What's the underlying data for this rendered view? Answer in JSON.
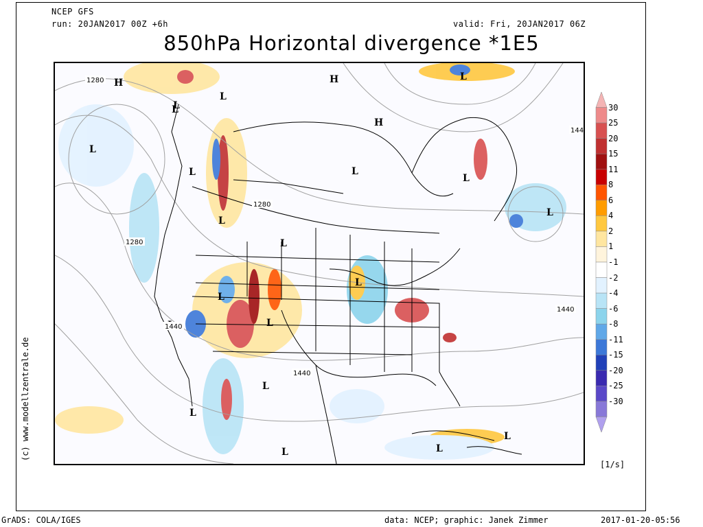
{
  "header": {
    "model": "NCEP GFS",
    "run": "run: 20JAN2017 00Z +6h",
    "valid": "valid: Fri, 20JAN2017 06Z",
    "title": "850hPa Horizontal divergence *1E5"
  },
  "credit_vertical": "(c) www.modellzentrale.de",
  "footer": {
    "left": "GrADS: COLA/IGES",
    "center": "data: NCEP; graphic: Janek Zimmer",
    "right": "2017-01-20-05:56"
  },
  "legend": {
    "unit": "[1/s]",
    "levels": [
      "30",
      "25",
      "20",
      "15",
      "11",
      "8",
      "6",
      "4",
      "2",
      "1",
      "-1",
      "-2",
      "-4",
      "-6",
      "-8",
      "-11",
      "-15",
      "-20",
      "-25",
      "-30"
    ],
    "colors": [
      "#f4b4b4",
      "#ee8a8a",
      "#d85050",
      "#c03030",
      "#a01010",
      "#c80000",
      "#ff5500",
      "#ff9c00",
      "#ffc840",
      "#ffe6a0",
      "#fff4dc",
      "#ffffff",
      "#e2f2ff",
      "#b8e4f6",
      "#8cd4ec",
      "#60a8e8",
      "#3c78d8",
      "#2040b8",
      "#3a2ab0",
      "#5a48c8",
      "#8878d8",
      "#b0a0ee"
    ]
  },
  "map_labels": {
    "pressure_systems": [
      {
        "symbol": "H"
      },
      {
        "symbol": "L"
      },
      {
        "symbol": "L"
      },
      {
        "symbol": "L"
      },
      {
        "symbol": "H"
      },
      {
        "symbol": "H"
      },
      {
        "symbol": "L"
      },
      {
        "symbol": "L"
      },
      {
        "symbol": "L"
      },
      {
        "symbol": "L"
      },
      {
        "symbol": "L"
      },
      {
        "symbol": "L"
      },
      {
        "symbol": "L"
      },
      {
        "symbol": "L"
      },
      {
        "symbol": "L"
      },
      {
        "symbol": "L"
      },
      {
        "symbol": "L"
      },
      {
        "symbol": "L"
      },
      {
        "symbol": "L"
      },
      {
        "symbol": "L"
      },
      {
        "symbol": "L"
      },
      {
        "symbol": "L"
      },
      {
        "symbol": "L"
      },
      {
        "symbol": "L"
      }
    ],
    "contours": [
      "1280",
      "1280",
      "1280",
      "1440",
      "1440",
      "1440",
      "144"
    ]
  }
}
